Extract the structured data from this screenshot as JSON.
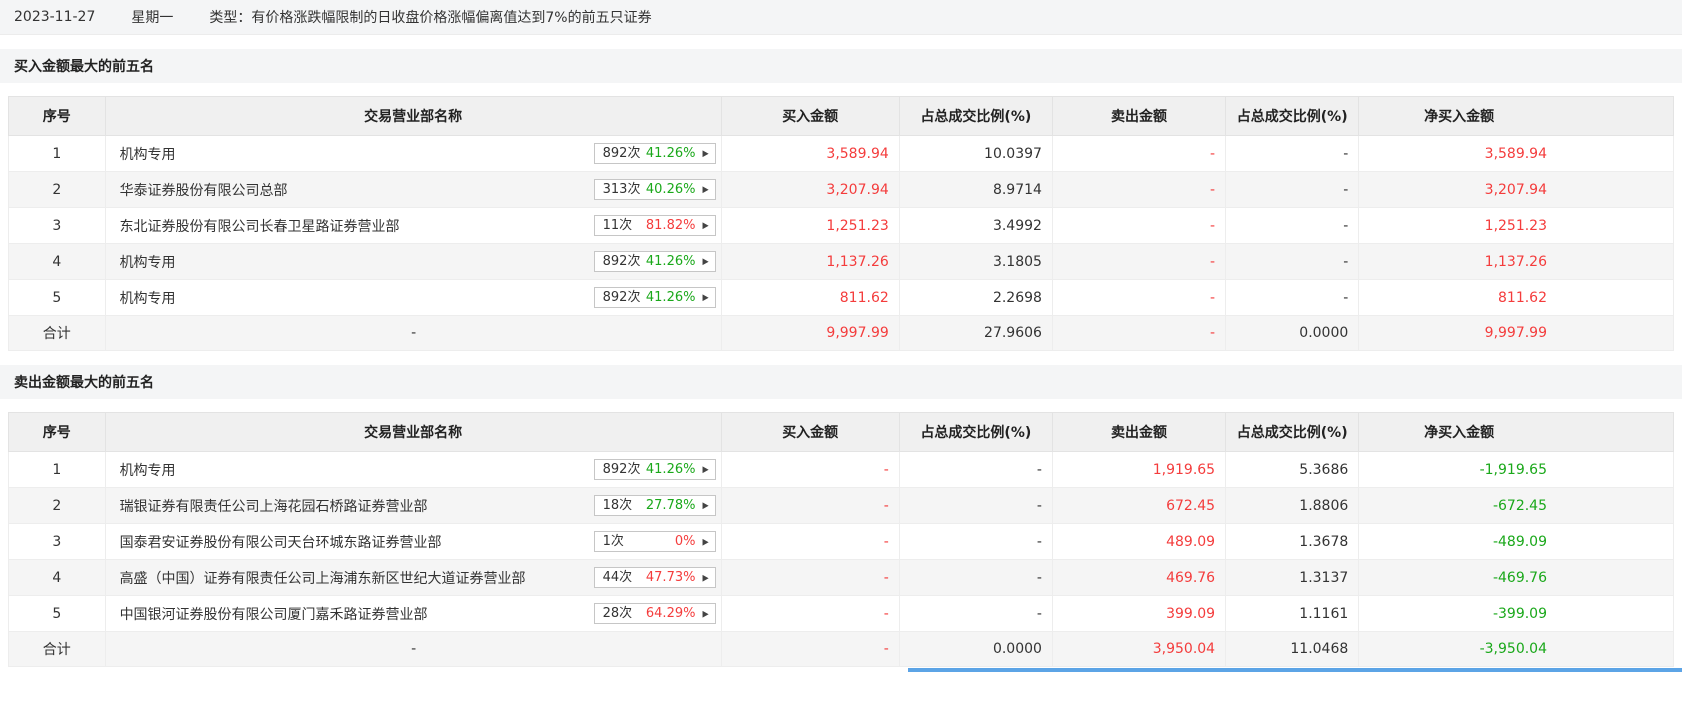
{
  "colors": {
    "red": "#f43c3c",
    "green": "#1aa81a",
    "default": "#333333"
  },
  "topbar": {
    "date": "2023-11-27",
    "weekday": "星期一",
    "type": "类型：有价格涨跌幅限制的日收盘价格涨幅偏离值达到7%的前五只证券"
  },
  "sections": [
    {
      "title": "买入金额最大的前五名",
      "headers": [
        "序号",
        "交易营业部名称",
        "买入金额",
        "占总成交比例(%)",
        "卖出金额",
        "占总成交比例(%)",
        "净买入金额"
      ],
      "rows": [
        {
          "seq": "1",
          "name": "机构专用",
          "badge": {
            "count": "892次",
            "pct": "41.26%",
            "color": "green"
          },
          "cells": [
            {
              "text": "3,589.94",
              "color": "red"
            },
            {
              "text": "10.0397",
              "color": "default"
            },
            {
              "text": "-",
              "color": "red"
            },
            {
              "text": "-",
              "color": "default"
            },
            {
              "text": "3,589.94",
              "color": "red"
            }
          ]
        },
        {
          "seq": "2",
          "name": "华泰证券股份有限公司总部",
          "badge": {
            "count": "313次",
            "pct": "40.26%",
            "color": "green"
          },
          "cells": [
            {
              "text": "3,207.94",
              "color": "red"
            },
            {
              "text": "8.9714",
              "color": "default"
            },
            {
              "text": "-",
              "color": "red"
            },
            {
              "text": "-",
              "color": "default"
            },
            {
              "text": "3,207.94",
              "color": "red"
            }
          ]
        },
        {
          "seq": "3",
          "name": "东北证券股份有限公司长春卫星路证券营业部",
          "badge": {
            "count": "11次",
            "pct": "81.82%",
            "color": "red"
          },
          "cells": [
            {
              "text": "1,251.23",
              "color": "red"
            },
            {
              "text": "3.4992",
              "color": "default"
            },
            {
              "text": "-",
              "color": "red"
            },
            {
              "text": "-",
              "color": "default"
            },
            {
              "text": "1,251.23",
              "color": "red"
            }
          ]
        },
        {
          "seq": "4",
          "name": "机构专用",
          "badge": {
            "count": "892次",
            "pct": "41.26%",
            "color": "green"
          },
          "cells": [
            {
              "text": "1,137.26",
              "color": "red"
            },
            {
              "text": "3.1805",
              "color": "default"
            },
            {
              "text": "-",
              "color": "red"
            },
            {
              "text": "-",
              "color": "default"
            },
            {
              "text": "1,137.26",
              "color": "red"
            }
          ]
        },
        {
          "seq": "5",
          "name": "机构专用",
          "badge": {
            "count": "892次",
            "pct": "41.26%",
            "color": "green"
          },
          "cells": [
            {
              "text": "811.62",
              "color": "red"
            },
            {
              "text": "2.2698",
              "color": "default"
            },
            {
              "text": "-",
              "color": "red"
            },
            {
              "text": "-",
              "color": "default"
            },
            {
              "text": "811.62",
              "color": "red"
            }
          ]
        },
        {
          "seq": "合计",
          "name": "-",
          "badge": null,
          "cells": [
            {
              "text": "9,997.99",
              "color": "red"
            },
            {
              "text": "27.9606",
              "color": "default"
            },
            {
              "text": "-",
              "color": "red"
            },
            {
              "text": "0.0000",
              "color": "default"
            },
            {
              "text": "9,997.99",
              "color": "red"
            }
          ]
        }
      ]
    },
    {
      "title": "卖出金额最大的前五名",
      "headers": [
        "序号",
        "交易营业部名称",
        "买入金额",
        "占总成交比例(%)",
        "卖出金额",
        "占总成交比例(%)",
        "净买入金额"
      ],
      "rows": [
        {
          "seq": "1",
          "name": "机构专用",
          "badge": {
            "count": "892次",
            "pct": "41.26%",
            "color": "green"
          },
          "cells": [
            {
              "text": "-",
              "color": "red"
            },
            {
              "text": "-",
              "color": "default"
            },
            {
              "text": "1,919.65",
              "color": "red"
            },
            {
              "text": "5.3686",
              "color": "default"
            },
            {
              "text": "-1,919.65",
              "color": "green"
            }
          ]
        },
        {
          "seq": "2",
          "name": "瑞银证券有限责任公司上海花园石桥路证券营业部",
          "badge": {
            "count": "18次",
            "pct": "27.78%",
            "color": "green"
          },
          "cells": [
            {
              "text": "-",
              "color": "red"
            },
            {
              "text": "-",
              "color": "default"
            },
            {
              "text": "672.45",
              "color": "red"
            },
            {
              "text": "1.8806",
              "color": "default"
            },
            {
              "text": "-672.45",
              "color": "green"
            }
          ]
        },
        {
          "seq": "3",
          "name": "国泰君安证券股份有限公司天台环城东路证券营业部",
          "badge": {
            "count": "1次",
            "pct": "0%",
            "color": "red"
          },
          "cells": [
            {
              "text": "-",
              "color": "red"
            },
            {
              "text": "-",
              "color": "default"
            },
            {
              "text": "489.09",
              "color": "red"
            },
            {
              "text": "1.3678",
              "color": "default"
            },
            {
              "text": "-489.09",
              "color": "green"
            }
          ]
        },
        {
          "seq": "4",
          "name": "高盛（中国）证券有限责任公司上海浦东新区世纪大道证券营业部",
          "badge": {
            "count": "44次",
            "pct": "47.73%",
            "color": "red"
          },
          "cells": [
            {
              "text": "-",
              "color": "red"
            },
            {
              "text": "-",
              "color": "default"
            },
            {
              "text": "469.76",
              "color": "red"
            },
            {
              "text": "1.3137",
              "color": "default"
            },
            {
              "text": "-469.76",
              "color": "green"
            }
          ]
        },
        {
          "seq": "5",
          "name": "中国银河证券股份有限公司厦门嘉禾路证券营业部",
          "badge": {
            "count": "28次",
            "pct": "64.29%",
            "color": "red"
          },
          "cells": [
            {
              "text": "-",
              "color": "red"
            },
            {
              "text": "-",
              "color": "default"
            },
            {
              "text": "399.09",
              "color": "red"
            },
            {
              "text": "1.1161",
              "color": "default"
            },
            {
              "text": "-399.09",
              "color": "green"
            }
          ]
        },
        {
          "seq": "合计",
          "name": "-",
          "badge": null,
          "cells": [
            {
              "text": "-",
              "color": "red"
            },
            {
              "text": "0.0000",
              "color": "default"
            },
            {
              "text": "3,950.04",
              "color": "red"
            },
            {
              "text": "11.0468",
              "color": "default"
            },
            {
              "text": "-3,950.04",
              "color": "green"
            }
          ]
        }
      ]
    }
  ]
}
